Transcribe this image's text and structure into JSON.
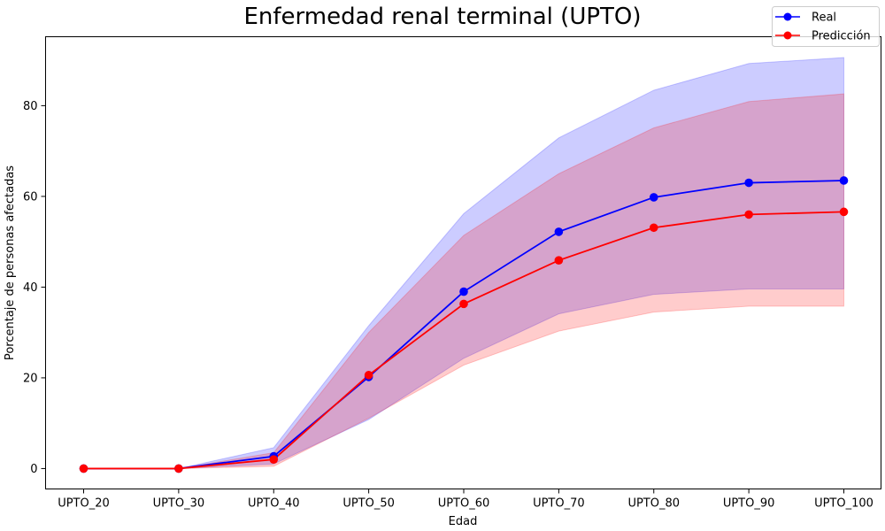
{
  "chart_data": {
    "type": "line",
    "title": "Enfermedad renal terminal (UPTO)",
    "xlabel": "Edad",
    "ylabel": "Porcentaje de personas afectadas",
    "categories": [
      "UPTO_20",
      "UPTO_30",
      "UPTO_40",
      "UPTO_50",
      "UPTO_60",
      "UPTO_70",
      "UPTO_80",
      "UPTO_90",
      "UPTO_100"
    ],
    "ylim": [
      -4.5,
      95.2
    ],
    "yticks": [
      0,
      20,
      40,
      60,
      80
    ],
    "grid": false,
    "legend_position": "top-right",
    "series": [
      {
        "name": "Real",
        "color": "#0000ff",
        "band_color": "#0000ff",
        "values": [
          0.0,
          0.0,
          2.7,
          20.2,
          39.0,
          52.2,
          59.8,
          63.0,
          63.5
        ],
        "lower": [
          0.0,
          0.0,
          1.0,
          10.8,
          24.3,
          34.1,
          38.4,
          39.6,
          39.6
        ],
        "upper": [
          0.0,
          0.0,
          4.6,
          31.5,
          56.2,
          72.9,
          83.4,
          89.3,
          90.6
        ]
      },
      {
        "name": "Predicción",
        "color": "#ff0000",
        "band_color": "#ff0000",
        "values": [
          0.0,
          0.0,
          2.0,
          20.6,
          36.3,
          45.9,
          53.1,
          56.0,
          56.6
        ],
        "lower": [
          0.0,
          0.0,
          0.5,
          11.1,
          22.8,
          30.3,
          34.5,
          35.8,
          35.8
        ],
        "upper": [
          0.0,
          0.0,
          3.5,
          30.0,
          51.4,
          65.0,
          75.1,
          80.9,
          82.6
        ]
      }
    ]
  }
}
